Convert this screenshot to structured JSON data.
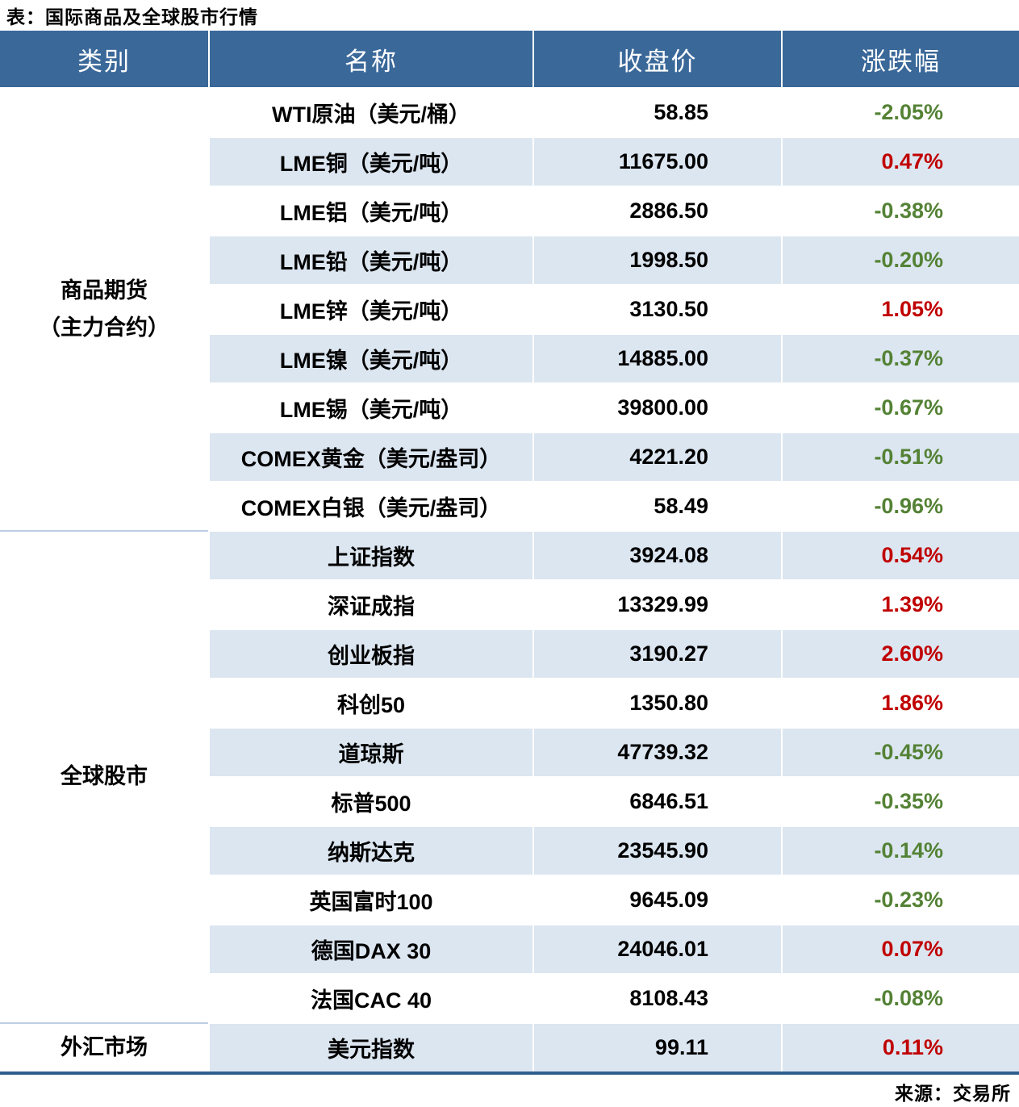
{
  "title": "表：国际商品及全球股市行情",
  "source": "来源：交易所",
  "colors": {
    "header_bg": "#3A6899",
    "header_text": "#ffffff",
    "row_alt": "#DCE6F1",
    "row_white": "#FFFFFF",
    "up_red": "#C00000",
    "down_green": "#548235",
    "section_divider": "#BDCFE3",
    "bottom_rule": "#2F5E8E"
  },
  "table": {
    "header": {
      "category": "类别",
      "name": "名称",
      "close": "收盘价",
      "change": "涨跌幅"
    },
    "sections": [
      {
        "category": "商品期货\n（主力合约）",
        "rows": [
          {
            "name": "WTI原油（美元/桶）",
            "close": "58.85",
            "change": "-2.05%"
          },
          {
            "name": "LME铜（美元/吨）",
            "close": "11675.00",
            "change": "0.47%"
          },
          {
            "name": "LME铝（美元/吨）",
            "close": "2886.50",
            "change": "-0.38%"
          },
          {
            "name": "LME铅（美元/吨）",
            "close": "1998.50",
            "change": "-0.20%"
          },
          {
            "name": "LME锌（美元/吨）",
            "close": "3130.50",
            "change": "1.05%"
          },
          {
            "name": "LME镍（美元/吨）",
            "close": "14885.00",
            "change": "-0.37%"
          },
          {
            "name": "LME锡（美元/吨）",
            "close": "39800.00",
            "change": "-0.67%"
          },
          {
            "name": "COMEX黄金（美元/盎司）",
            "close": "4221.20",
            "change": "-0.51%"
          },
          {
            "name": "COMEX白银（美元/盎司）",
            "close": "58.49",
            "change": "-0.96%"
          }
        ]
      },
      {
        "category": "全球股市",
        "rows": [
          {
            "name": "上证指数",
            "close": "3924.08",
            "change": "0.54%"
          },
          {
            "name": "深证成指",
            "close": "13329.99",
            "change": "1.39%"
          },
          {
            "name": "创业板指",
            "close": "3190.27",
            "change": "2.60%"
          },
          {
            "name": "科创50",
            "close": "1350.80",
            "change": "1.86%"
          },
          {
            "name": "道琼斯",
            "close": "47739.32",
            "change": "-0.45%"
          },
          {
            "name": "标普500",
            "close": "6846.51",
            "change": "-0.35%"
          },
          {
            "name": "纳斯达克",
            "close": "23545.90",
            "change": "-0.14%"
          },
          {
            "name": "英国富时100",
            "close": "9645.09",
            "change": "-0.23%"
          },
          {
            "name": "德国DAX 30",
            "close": "24046.01",
            "change": "0.07%"
          },
          {
            "name": "法国CAC 40",
            "close": "8108.43",
            "change": "-0.08%"
          }
        ]
      },
      {
        "category": "外汇市场",
        "rows": [
          {
            "name": "美元指数",
            "close": "99.11",
            "change": "0.11%"
          }
        ]
      }
    ]
  },
  "chart_data": {
    "type": "table",
    "title": "表：国际商品及全球股市行情",
    "columns": [
      "类别",
      "名称",
      "收盘价",
      "涨跌幅"
    ],
    "rows": [
      [
        "商品期货（主力合约）",
        "WTI原油（美元/桶）",
        58.85,
        "-2.05%"
      ],
      [
        "商品期货（主力合约）",
        "LME铜（美元/吨）",
        11675.0,
        "0.47%"
      ],
      [
        "商品期货（主力合约）",
        "LME铝（美元/吨）",
        2886.5,
        "-0.38%"
      ],
      [
        "商品期货（主力合约）",
        "LME铅（美元/吨）",
        1998.5,
        "-0.20%"
      ],
      [
        "商品期货（主力合约）",
        "LME锌（美元/吨）",
        3130.5,
        "1.05%"
      ],
      [
        "商品期货（主力合约）",
        "LME镍（美元/吨）",
        14885.0,
        "-0.37%"
      ],
      [
        "商品期货（主力合约）",
        "LME锡（美元/吨）",
        39800.0,
        "-0.67%"
      ],
      [
        "商品期货（主力合约）",
        "COMEX黄金（美元/盎司）",
        4221.2,
        "-0.51%"
      ],
      [
        "商品期货（主力合约）",
        "COMEX白银（美元/盎司）",
        58.49,
        "-0.96%"
      ],
      [
        "全球股市",
        "上证指数",
        3924.08,
        "0.54%"
      ],
      [
        "全球股市",
        "深证成指",
        13329.99,
        "1.39%"
      ],
      [
        "全球股市",
        "创业板指",
        3190.27,
        "2.60%"
      ],
      [
        "全球股市",
        "科创50",
        1350.8,
        "1.86%"
      ],
      [
        "全球股市",
        "道琼斯",
        47739.32,
        "-0.45%"
      ],
      [
        "全球股市",
        "标普500",
        6846.51,
        "-0.35%"
      ],
      [
        "全球股市",
        "纳斯达克",
        23545.9,
        "-0.14%"
      ],
      [
        "全球股市",
        "英国富时100",
        9645.09,
        "-0.23%"
      ],
      [
        "全球股市",
        "德国DAX 30",
        24046.01,
        "0.07%"
      ],
      [
        "全球股市",
        "法国CAC 40",
        8108.43,
        "-0.08%"
      ],
      [
        "外汇市场",
        "美元指数",
        99.11,
        "0.11%"
      ]
    ],
    "source": "来源：交易所",
    "layout_hints": {
      "positive_change_color": "#C00000",
      "negative_change_color": "#548235",
      "zebra_striping": true
    }
  }
}
